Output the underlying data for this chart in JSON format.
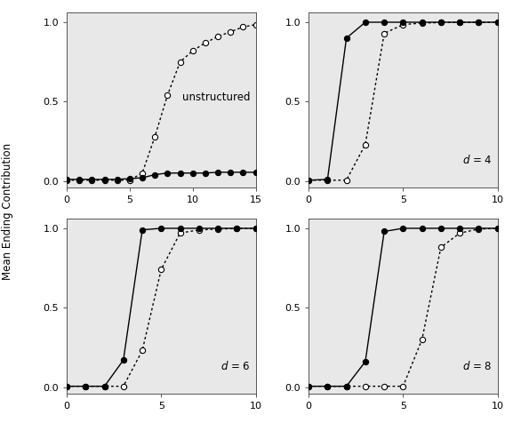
{
  "panels": [
    {
      "label": "unstructured",
      "xlim": [
        0,
        15
      ],
      "xticks": [
        0,
        5,
        10,
        15
      ],
      "solid_x": [
        0,
        1,
        2,
        3,
        4,
        5,
        6,
        7,
        8,
        9,
        10,
        11,
        12,
        13,
        14,
        15
      ],
      "solid_y": [
        0.01,
        0.01,
        0.01,
        0.01,
        0.01,
        0.015,
        0.02,
        0.04,
        0.05,
        0.05,
        0.05,
        0.05,
        0.055,
        0.055,
        0.055,
        0.055
      ],
      "dotted_x": [
        0,
        1,
        2,
        3,
        4,
        5,
        6,
        7,
        8,
        9,
        10,
        11,
        12,
        13,
        14,
        15
      ],
      "dotted_y": [
        0.005,
        0.005,
        0.005,
        0.005,
        0.005,
        0.005,
        0.05,
        0.28,
        0.54,
        0.75,
        0.82,
        0.87,
        0.91,
        0.94,
        0.97,
        0.985
      ]
    },
    {
      "label": "d = 4",
      "xlim": [
        0,
        10
      ],
      "xticks": [
        0,
        5,
        10
      ],
      "solid_x": [
        0,
        1,
        2,
        3,
        4,
        5,
        6,
        7,
        8,
        9,
        10
      ],
      "solid_y": [
        0.005,
        0.01,
        0.9,
        1.0,
        1.0,
        1.0,
        1.0,
        1.0,
        1.0,
        1.0,
        1.0
      ],
      "dotted_x": [
        0,
        1,
        2,
        3,
        4,
        5,
        6,
        7,
        8,
        9,
        10
      ],
      "dotted_y": [
        0.005,
        0.005,
        0.005,
        0.23,
        0.93,
        0.985,
        0.995,
        0.998,
        0.999,
        0.999,
        1.0
      ]
    },
    {
      "label": "d = 6",
      "xlim": [
        0,
        10
      ],
      "xticks": [
        0,
        5,
        10
      ],
      "solid_x": [
        0,
        1,
        2,
        3,
        4,
        5,
        6,
        7,
        8,
        9,
        10
      ],
      "solid_y": [
        0.005,
        0.005,
        0.005,
        0.17,
        0.99,
        1.0,
        1.0,
        1.0,
        1.0,
        1.0,
        1.0
      ],
      "dotted_x": [
        0,
        1,
        2,
        3,
        4,
        5,
        6,
        7,
        8,
        9,
        10
      ],
      "dotted_y": [
        0.005,
        0.005,
        0.005,
        0.005,
        0.23,
        0.74,
        0.97,
        0.99,
        0.995,
        0.999,
        1.0
      ]
    },
    {
      "label": "d = 8",
      "xlim": [
        0,
        10
      ],
      "xticks": [
        0,
        5,
        10
      ],
      "solid_x": [
        0,
        1,
        2,
        3,
        4,
        5,
        6,
        7,
        8,
        9,
        10
      ],
      "solid_y": [
        0.005,
        0.005,
        0.005,
        0.16,
        0.98,
        1.0,
        1.0,
        1.0,
        1.0,
        1.0,
        1.0
      ],
      "dotted_x": [
        0,
        1,
        2,
        3,
        4,
        5,
        6,
        7,
        8,
        9,
        10
      ],
      "dotted_y": [
        0.005,
        0.005,
        0.005,
        0.005,
        0.005,
        0.005,
        0.3,
        0.88,
        0.97,
        0.995,
        1.0
      ]
    }
  ],
  "ylabel": "Mean Ending Contribution",
  "ylim": [
    0.0,
    1.0
  ],
  "yticks": [
    0.0,
    0.5,
    1.0
  ],
  "line_color": "#000000",
  "marker_size": 4.5,
  "linewidth": 1.0
}
